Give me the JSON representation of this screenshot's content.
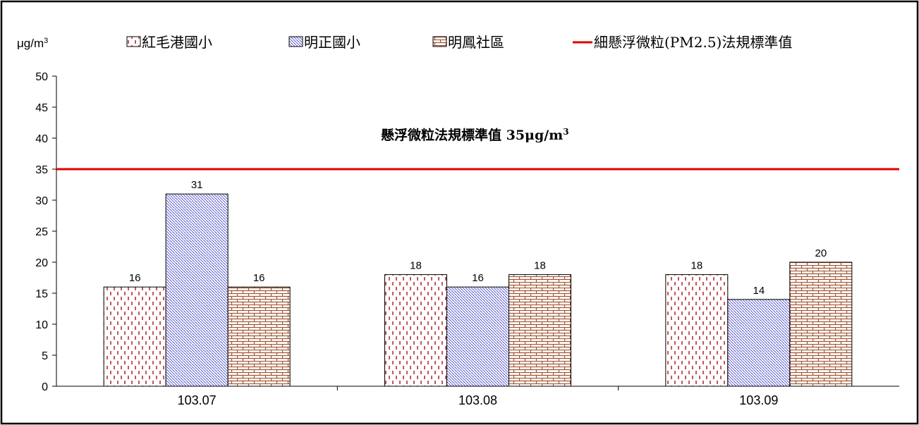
{
  "chart_data": {
    "type": "bar",
    "ylabel": "μg/m³",
    "ylim": [
      0,
      50
    ],
    "yticks": [
      0,
      5,
      10,
      15,
      20,
      25,
      30,
      35,
      40,
      45,
      50
    ],
    "categories": [
      "103.07",
      "103.08",
      "103.09"
    ],
    "series": [
      {
        "name": "紅毛港國小",
        "values": [
          16,
          18,
          18
        ],
        "color": "#b03030",
        "pattern": "pat-dashes"
      },
      {
        "name": "明正國小",
        "values": [
          31,
          16,
          14
        ],
        "color": "#5a5ad0",
        "pattern": "pat-diag"
      },
      {
        "name": "明鳳社區",
        "values": [
          16,
          18,
          20
        ],
        "color": "#a0522d",
        "pattern": "pat-brick"
      }
    ],
    "reference_line": {
      "name": "細懸浮微粒(PM2.5)法規標準值",
      "value": 35,
      "color": "#e00000",
      "annotation": "懸浮微粒法規標準值 35μg/m³"
    },
    "grid": false,
    "legend_position": "top"
  }
}
